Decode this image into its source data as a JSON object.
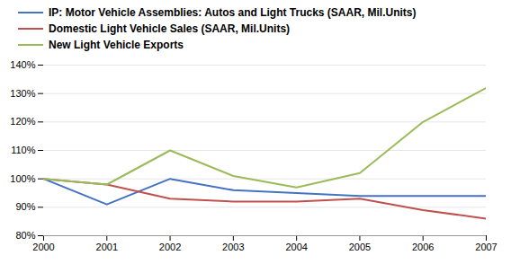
{
  "chart_data": {
    "type": "line",
    "x": [
      2000,
      2001,
      2002,
      2003,
      2004,
      2005,
      2006,
      2007
    ],
    "series": [
      {
        "name": "IP: Motor Vehicle Assemblies: Autos and Light Trucks (SAAR, Mil.Units)",
        "color": "#4472C4",
        "values": [
          100,
          91,
          100,
          96,
          95,
          94,
          94,
          94
        ]
      },
      {
        "name": "Domestic Light Vehicle Sales (SAAR, Mil.Units)",
        "color": "#C0504D",
        "values": [
          100,
          98,
          93,
          92,
          92,
          93,
          89,
          86
        ]
      },
      {
        "name": "New Light Vehicle Exports",
        "color": "#9BBB59",
        "values": [
          100,
          98,
          110,
          101,
          97,
          102,
          120,
          132
        ]
      }
    ],
    "xlim": [
      2000,
      2007
    ],
    "xticks": [
      2000,
      2001,
      2002,
      2003,
      2004,
      2005,
      2006,
      2007
    ],
    "ylim": [
      80,
      140
    ],
    "yticks": [
      {
        "value": 80,
        "label": "80%"
      },
      {
        "value": 90,
        "label": "90%"
      },
      {
        "value": 100,
        "label": "100%"
      },
      {
        "value": 110,
        "label": "110%"
      },
      {
        "value": 120,
        "label": "120%"
      },
      {
        "value": 130,
        "label": "130%"
      },
      {
        "value": 140,
        "label": "140%"
      }
    ],
    "grid": true,
    "legend": "upper left"
  }
}
